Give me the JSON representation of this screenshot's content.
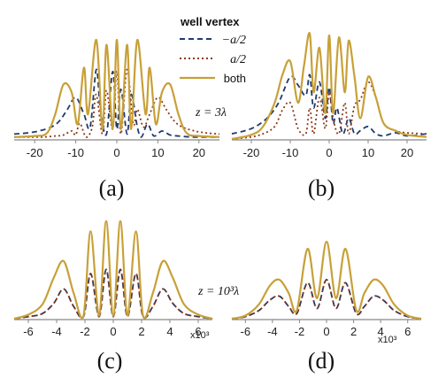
{
  "colors": {
    "neg": "#1f3a6e",
    "pos": "#8b3a1a",
    "both": "#c8a038",
    "axis": "#888888"
  },
  "legend": {
    "title": "well vertex",
    "items": [
      {
        "label": "−a/2",
        "color": "#1f3a6e",
        "style": "dashed"
      },
      {
        "label": "a/2",
        "color": "#8b3a1a",
        "style": "dotted"
      },
      {
        "label": "both",
        "color": "#c8a038",
        "style": "solid"
      }
    ]
  },
  "chart_data": [
    {
      "type": "line",
      "panel_label": "(a)",
      "annotation": "z = 3λ",
      "xlim": [
        -25,
        25
      ],
      "xticks": [
        "-20",
        "-10",
        "0",
        "10",
        "20"
      ],
      "xtick_values": [
        -20,
        -10,
        0,
        10,
        20
      ],
      "series": [
        {
          "name": "−a/2",
          "x": [
            -25,
            -22,
            -19,
            -16,
            -14,
            -12,
            -10,
            -8,
            -6.5,
            -5,
            -4,
            -2.5,
            -1,
            0,
            1,
            2.5,
            3.5,
            5,
            6,
            7.5,
            9,
            11,
            13,
            15,
            18,
            21,
            25
          ],
          "y": [
            0.05,
            0.06,
            0.08,
            0.12,
            0.18,
            0.3,
            0.42,
            0.25,
            0.12,
            0.7,
            0.3,
            0.05,
            0.68,
            0.1,
            0.5,
            0.05,
            0.45,
            0.12,
            0.02,
            0.15,
            0.03,
            0.08,
            0.04,
            0.03,
            0.02,
            0.02,
            0.02
          ]
        },
        {
          "name": "a/2",
          "x": [
            -25,
            -21,
            -18,
            -15,
            -13,
            -11,
            -10,
            -9,
            -7.5,
            -6,
            -5,
            -3.5,
            -2.5,
            -1,
            0,
            1,
            2.5,
            4,
            5,
            6.5,
            8,
            10,
            12,
            14,
            16,
            19,
            22,
            25
          ],
          "y": [
            0.02,
            0.02,
            0.02,
            0.03,
            0.04,
            0.08,
            0.04,
            0.16,
            0.02,
            0.12,
            0.45,
            0.05,
            0.49,
            0.1,
            0.68,
            0.05,
            0.7,
            0.15,
            0.3,
            0.12,
            0.25,
            0.42,
            0.3,
            0.18,
            0.12,
            0.08,
            0.06,
            0.05
          ]
        },
        {
          "name": "both",
          "x": [
            -25,
            -20,
            -17,
            -15,
            -13,
            -11,
            -9.5,
            -8,
            -7,
            -5,
            -3.5,
            -2.5,
            -1,
            0,
            1,
            2.5,
            3.5,
            5,
            7,
            8,
            9.5,
            11,
            13,
            15,
            17,
            20,
            25
          ],
          "y": [
            0.02,
            0.03,
            0.06,
            0.25,
            0.55,
            0.47,
            0.15,
            0.72,
            0.25,
            1.0,
            0.1,
            0.95,
            0.1,
            1.0,
            0.1,
            0.95,
            0.1,
            1.0,
            0.25,
            0.72,
            0.15,
            0.47,
            0.55,
            0.25,
            0.06,
            0.03,
            0.02
          ]
        }
      ]
    },
    {
      "type": "line",
      "panel_label": "(b)",
      "annotation": "",
      "xlim": [
        -25,
        25
      ],
      "xticks": [
        "-20",
        "-10",
        "0",
        "10",
        "20"
      ],
      "xtick_values": [
        -20,
        -10,
        0,
        10,
        20
      ],
      "series": [
        {
          "name": "−a/2",
          "x": [
            -25,
            -20,
            -16,
            -13,
            -10,
            -8,
            -6,
            -5,
            -4,
            -2.5,
            -1,
            0,
            1,
            2,
            3.5,
            5,
            6.5,
            8,
            10,
            12,
            14,
            17,
            20,
            25
          ],
          "y": [
            0.05,
            0.1,
            0.2,
            0.35,
            0.6,
            0.52,
            0.42,
            0.62,
            0.3,
            0.55,
            0.2,
            0.5,
            0.15,
            0.3,
            0.05,
            0.2,
            0.05,
            0.08,
            0.12,
            0.05,
            0.03,
            0.06,
            0.03,
            0.05
          ]
        },
        {
          "name": "a/2",
          "x": [
            -25,
            -20,
            -17,
            -14,
            -12,
            -10,
            -8,
            -6,
            -5,
            -4,
            -2.5,
            -1,
            0,
            1,
            2.5,
            4,
            5,
            6.5,
            8,
            10,
            12,
            14,
            17,
            20,
            25
          ],
          "y": [
            0.0,
            0.02,
            0.05,
            0.12,
            0.28,
            0.35,
            0.1,
            0.05,
            0.3,
            0.05,
            0.4,
            0.1,
            0.45,
            0.2,
            0.05,
            0.35,
            0.05,
            0.32,
            0.38,
            0.55,
            0.4,
            0.15,
            0.08,
            0.06,
            0.05
          ]
        },
        {
          "name": "both",
          "x": [
            -25,
            -20,
            -17,
            -14,
            -12,
            -10,
            -8,
            -6.5,
            -5,
            -4,
            -2.5,
            -1,
            0,
            1,
            2.5,
            4,
            5,
            6.5,
            8,
            10,
            12,
            14,
            17,
            20,
            25
          ],
          "y": [
            0.0,
            0.04,
            0.12,
            0.35,
            0.62,
            0.75,
            0.35,
            0.7,
            1.02,
            0.45,
            0.88,
            0.25,
            1.0,
            0.25,
            0.98,
            0.45,
            0.95,
            0.6,
            0.2,
            0.6,
            0.4,
            0.15,
            0.08,
            0.04,
            0.02
          ]
        }
      ]
    },
    {
      "type": "line",
      "panel_label": "(c)",
      "annotation": "z = 10³λ",
      "xlim": [
        -7,
        7
      ],
      "xticks": [
        "-6",
        "-4",
        "-2",
        "0",
        "2",
        "4",
        "6"
      ],
      "xtick_values": [
        -6,
        -4,
        -2,
        0,
        2,
        4,
        6
      ],
      "x_multiplier": "x10³",
      "series": [
        {
          "name": "−a/2",
          "x": [
            -7,
            -6,
            -5,
            -4.2,
            -3.5,
            -2.8,
            -2.1,
            -1.6,
            -1.0,
            -0.5,
            0,
            0.5,
            1.0,
            1.6,
            2.1,
            2.8,
            3.5,
            4.2,
            5,
            6,
            7
          ],
          "y": [
            0.0,
            0.02,
            0.05,
            0.15,
            0.29,
            0.12,
            0.02,
            0.44,
            0.02,
            0.48,
            0.02,
            0.48,
            0.02,
            0.44,
            0.02,
            0.12,
            0.29,
            0.15,
            0.05,
            0.02,
            0.0
          ]
        },
        {
          "name": "a/2",
          "x": [
            -7,
            -6,
            -5,
            -4.2,
            -3.5,
            -2.8,
            -2.1,
            -1.6,
            -1.0,
            -0.5,
            0,
            0.5,
            1.0,
            1.6,
            2.1,
            2.8,
            3.5,
            4.2,
            5,
            6,
            7
          ],
          "y": [
            0.0,
            0.02,
            0.05,
            0.15,
            0.29,
            0.12,
            0.02,
            0.44,
            0.02,
            0.48,
            0.02,
            0.48,
            0.02,
            0.44,
            0.02,
            0.12,
            0.29,
            0.15,
            0.05,
            0.02,
            0.0
          ]
        },
        {
          "name": "both",
          "x": [
            -7,
            -6,
            -5,
            -4.2,
            -3.5,
            -2.8,
            -2.1,
            -1.6,
            -1.0,
            -0.5,
            0,
            0.5,
            1.0,
            1.6,
            2.1,
            2.8,
            3.5,
            4.2,
            5,
            6,
            7
          ],
          "y": [
            0.0,
            0.04,
            0.14,
            0.4,
            0.56,
            0.25,
            0.03,
            0.85,
            0.03,
            0.95,
            0.03,
            0.95,
            0.03,
            0.85,
            0.03,
            0.25,
            0.56,
            0.4,
            0.14,
            0.04,
            0.0
          ]
        }
      ]
    },
    {
      "type": "line",
      "panel_label": "(d)",
      "annotation": "",
      "xlim": [
        -7,
        7
      ],
      "xticks": [
        "-6",
        "-4",
        "-2",
        "0",
        "2",
        "4",
        "6"
      ],
      "xtick_values": [
        -6,
        -4,
        -2,
        0,
        2,
        4,
        6
      ],
      "x_multiplier": "x10³",
      "series": [
        {
          "name": "−a/2",
          "x": [
            -7,
            -6,
            -5,
            -4.2,
            -3.5,
            -2.8,
            -2.2,
            -1.4,
            -0.7,
            0,
            0.7,
            1.4,
            2.2,
            2.8,
            3.5,
            4.2,
            5,
            6,
            7
          ],
          "y": [
            0.0,
            0.02,
            0.08,
            0.18,
            0.22,
            0.12,
            0.05,
            0.35,
            0.1,
            0.38,
            0.1,
            0.35,
            0.05,
            0.12,
            0.22,
            0.18,
            0.08,
            0.02,
            0.0
          ]
        },
        {
          "name": "a/2",
          "x": [
            -7,
            -6,
            -5,
            -4.2,
            -3.5,
            -2.8,
            -2.2,
            -1.4,
            -0.7,
            0,
            0.7,
            1.4,
            2.2,
            2.8,
            3.5,
            4.2,
            5,
            6,
            7
          ],
          "y": [
            0.0,
            0.02,
            0.08,
            0.18,
            0.22,
            0.12,
            0.05,
            0.35,
            0.1,
            0.38,
            0.1,
            0.35,
            0.05,
            0.12,
            0.22,
            0.18,
            0.08,
            0.02,
            0.0
          ]
        },
        {
          "name": "both",
          "x": [
            -7,
            -6,
            -5,
            -4.2,
            -3.5,
            -2.8,
            -2.2,
            -1.4,
            -0.7,
            0,
            0.7,
            1.4,
            2.2,
            2.8,
            3.5,
            4.2,
            5,
            6,
            7
          ],
          "y": [
            0.0,
            0.03,
            0.14,
            0.32,
            0.38,
            0.25,
            0.08,
            0.68,
            0.2,
            0.75,
            0.2,
            0.68,
            0.08,
            0.25,
            0.38,
            0.32,
            0.14,
            0.03,
            0.0
          ]
        }
      ]
    }
  ]
}
